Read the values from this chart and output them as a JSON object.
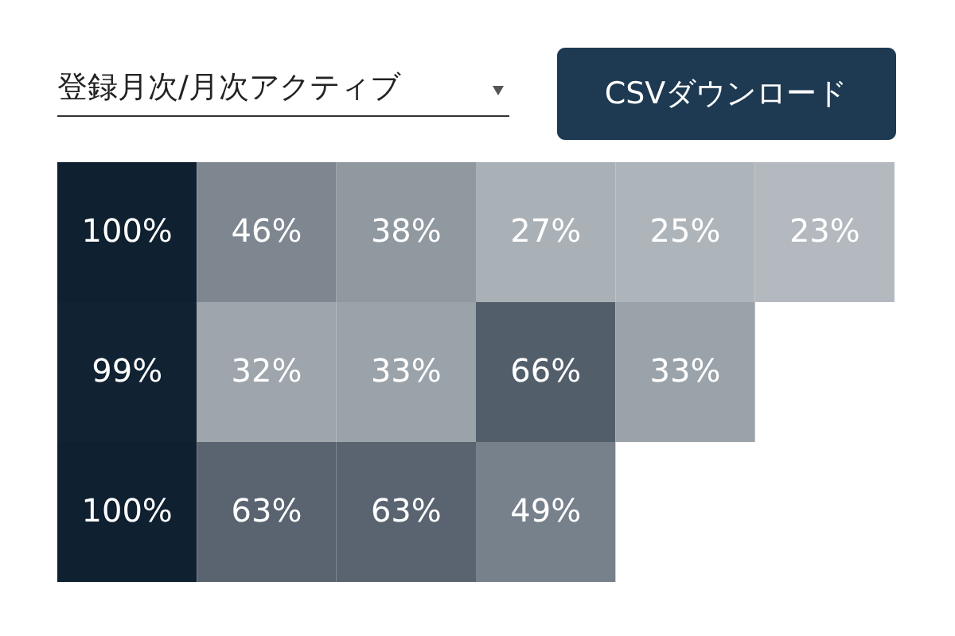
{
  "chart_data": {
    "type": "heatmap",
    "categories": [
      null,
      null,
      null,
      null,
      null,
      null
    ],
    "y_categories": [
      null,
      null,
      null
    ],
    "cells": [
      [
        100,
        46,
        38,
        27,
        25,
        23
      ],
      [
        99,
        32,
        33,
        66,
        33,
        null
      ],
      [
        100,
        63,
        63,
        49,
        null,
        null
      ]
    ],
    "cell_labels": [
      [
        "100%",
        "46%",
        "38%",
        "27%",
        "25%",
        "23%"
      ],
      [
        "99%",
        "32%",
        "33%",
        "66%",
        "33%",
        null
      ],
      [
        "100%",
        "63%",
        "63%",
        "49%",
        null,
        null
      ]
    ],
    "annotations": [
      "登録月次/月次アクティブ",
      "CSVダウンロード"
    ]
  }
}
